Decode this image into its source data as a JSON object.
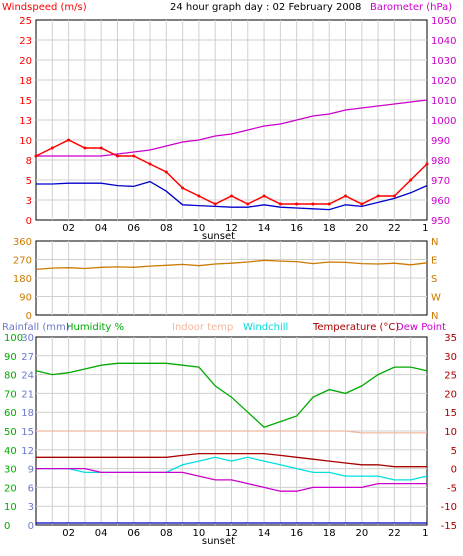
{
  "header": {
    "wind_label": "Windspeed (m/s)",
    "title": "24 hour graph day : 02 February 2008",
    "baro_label": "Barometer (hPa)"
  },
  "bottom_header": {
    "rainfall": "Rainfall (mm)",
    "humidity": "Humidity %",
    "indoor": "Indoor temp",
    "windchill": "Windchill",
    "temperature": "Temperature (°C)",
    "dewpoint": "Dew Point"
  },
  "x_ticks": [
    "02",
    "04",
    "06",
    "08",
    "10",
    "12",
    "14",
    "16",
    "18",
    "20",
    "22",
    "1"
  ],
  "sunset_label": "sunset",
  "colors": {
    "windspeed": "#ff0000",
    "gust_avg": "#0000cc",
    "barometer": "#cc00cc",
    "direction": "#cc7a00",
    "humidity": "#00aa00",
    "indoor": "#f0b8a0",
    "windchill": "#00e0e0",
    "temperature": "#aa0000",
    "dewpoint": "#cc00cc",
    "rainfall": "#0000cc",
    "grid": "#d0d0d0",
    "border": "#000000"
  },
  "chart_data": [
    {
      "type": "line",
      "title": "24 hour graph day : 02 February 2008",
      "y_ticks_left": [
        "0",
        "3",
        "5",
        "8",
        "10",
        "13",
        "15",
        "18",
        "20",
        "23",
        "25"
      ],
      "y_ticks_right": [
        "950",
        "960",
        "970",
        "980",
        "990",
        "1000",
        "1010",
        "1020",
        "1030",
        "1040",
        "1050"
      ],
      "ylim": [
        0,
        25
      ],
      "ylim_right": [
        950,
        1050
      ],
      "x_hours": [
        0,
        1,
        2,
        3,
        4,
        5,
        6,
        7,
        8,
        9,
        10,
        11,
        12,
        13,
        14,
        15,
        16,
        17,
        18,
        19,
        20,
        21,
        22,
        23,
        24
      ],
      "series": [
        {
          "name": "Windspeed (m/s)",
          "values": [
            8,
            9,
            10,
            9,
            9,
            8,
            8,
            7,
            6,
            4,
            3,
            2,
            3,
            2,
            3,
            2,
            2,
            2,
            2,
            3,
            2,
            3,
            3,
            5,
            7
          ]
        },
        {
          "name": "gust average",
          "values": [
            4.5,
            4.5,
            4.6,
            4.6,
            4.6,
            4.3,
            4.2,
            4.8,
            3.6,
            1.9,
            1.8,
            1.7,
            1.6,
            1.6,
            1.9,
            1.6,
            1.5,
            1.4,
            1.3,
            1.9,
            1.7,
            2.2,
            2.7,
            3.4,
            4.3
          ]
        },
        {
          "name": "Barometer (hPa)",
          "values": [
            982,
            982,
            982,
            982,
            982,
            983,
            984,
            985,
            987,
            989,
            990,
            992,
            993,
            995,
            997,
            998,
            1000,
            1002,
            1003,
            1005,
            1006,
            1007,
            1008,
            1009,
            1010
          ]
        }
      ]
    },
    {
      "type": "line",
      "y_ticks_left": [
        "0",
        "90",
        "180",
        "270",
        "360"
      ],
      "y_ticks_right": [
        "N",
        "W",
        "S",
        "E",
        "N"
      ],
      "ylim": [
        0,
        360
      ],
      "x_hours": [
        0,
        1,
        2,
        3,
        4,
        5,
        6,
        7,
        8,
        9,
        10,
        11,
        12,
        13,
        14,
        15,
        16,
        17,
        18,
        19,
        20,
        21,
        22,
        23,
        24
      ],
      "series": [
        {
          "name": "Wind direction",
          "values": [
            222,
            228,
            230,
            226,
            232,
            234,
            232,
            238,
            242,
            246,
            240,
            248,
            252,
            258,
            266,
            262,
            260,
            250,
            258,
            256,
            250,
            248,
            252,
            244,
            254
          ]
        }
      ]
    },
    {
      "type": "line",
      "y_ticks_rain": [
        "0",
        "3",
        "6",
        "9",
        "12",
        "15",
        "18",
        "21",
        "24",
        "27",
        "30"
      ],
      "y_ticks_hum": [
        "0",
        "10",
        "20",
        "30",
        "40",
        "50",
        "60",
        "70",
        "80",
        "90",
        "100"
      ],
      "y_ticks_temp": [
        "-15",
        "-10",
        "-5",
        "0",
        "5",
        "10",
        "15",
        "20",
        "25",
        "30",
        "35"
      ],
      "ylim_hum": [
        0,
        100
      ],
      "ylim_temp": [
        -15,
        35
      ],
      "x_hours": [
        0,
        1,
        2,
        3,
        4,
        5,
        6,
        7,
        8,
        9,
        10,
        11,
        12,
        13,
        14,
        15,
        16,
        17,
        18,
        19,
        20,
        21,
        22,
        23,
        24
      ],
      "series": [
        {
          "name": "Humidity %",
          "values": [
            82,
            80,
            81,
            83,
            85,
            86,
            86,
            86,
            86,
            85,
            84,
            74,
            68,
            60,
            52,
            55,
            58,
            68,
            72,
            70,
            74,
            80,
            84,
            84,
            82
          ]
        },
        {
          "name": "Indoor temp",
          "values": [
            10,
            10,
            10,
            10,
            10,
            10,
            10,
            10,
            10,
            10,
            10,
            10,
            10,
            10,
            10,
            10,
            10,
            10,
            10,
            10,
            9.5,
            9.5,
            9.5,
            9.5,
            9.5
          ]
        },
        {
          "name": "Windchill",
          "values": [
            0,
            0,
            0,
            -1,
            -1,
            -1,
            -1,
            -1,
            -1,
            1,
            2,
            3,
            2,
            3,
            2,
            1,
            0,
            -1,
            -1,
            -2,
            -2,
            -2,
            -3,
            -3,
            -2
          ]
        },
        {
          "name": "Temperature (°C)",
          "values": [
            3,
            3,
            3,
            3,
            3,
            3,
            3,
            3,
            3,
            3.5,
            4,
            4,
            4,
            4,
            4,
            3.5,
            3,
            2.5,
            2,
            1.5,
            1,
            1,
            0.5,
            0.5,
            0.5
          ]
        },
        {
          "name": "Dew Point",
          "values": [
            0,
            0,
            0,
            0,
            -1,
            -1,
            -1,
            -1,
            -1,
            -1,
            -2,
            -3,
            -3,
            -4,
            -5,
            -6,
            -6,
            -5,
            -5,
            -5,
            -5,
            -4,
            -4,
            -4,
            -4
          ]
        },
        {
          "name": "Rainfall (mm)",
          "values": [
            0,
            0,
            0,
            0,
            0,
            0,
            0,
            0,
            0,
            0,
            0,
            0,
            0,
            0,
            0,
            0,
            0,
            0,
            0,
            0,
            0,
            0,
            0,
            0,
            0
          ]
        }
      ]
    }
  ]
}
